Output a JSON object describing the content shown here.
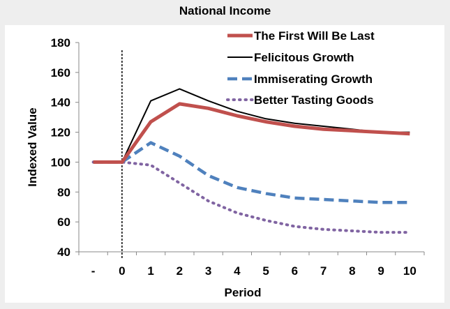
{
  "chart_data": {
    "type": "line",
    "title": "National Income",
    "xlabel": "Period",
    "ylabel": "Indexed Value",
    "categories": [
      "-",
      "0",
      "1",
      "2",
      "3",
      "4",
      "5",
      "6",
      "7",
      "8",
      "9",
      "10"
    ],
    "ylim": [
      40,
      180
    ],
    "yticks": [
      "40",
      "60",
      "80",
      "100",
      "120",
      "140",
      "160",
      "180"
    ],
    "grid": false,
    "legend_position": "top-right",
    "vertical_marker_at": "0",
    "series": [
      {
        "name": "The First Will Be Last",
        "color": "#c0504d",
        "style": "thick",
        "values": [
          100,
          100,
          127,
          139,
          136,
          131,
          127,
          124,
          122,
          121,
          120,
          119
        ]
      },
      {
        "name": "Felicitous Growth",
        "color": "#000000",
        "style": "thin",
        "values": [
          100,
          100,
          141,
          149,
          141,
          134,
          129,
          126,
          124,
          122,
          120,
          120
        ]
      },
      {
        "name": "Immiserating Growth",
        "color": "#4f81bd",
        "style": "dashed",
        "values": [
          100,
          100,
          113,
          104,
          91,
          83,
          79,
          76,
          75,
          74,
          73,
          73
        ]
      },
      {
        "name": "Better Tasting Goods",
        "color": "#8064a2",
        "style": "dotted",
        "values": [
          100,
          100,
          98,
          86,
          74,
          66,
          61,
          57,
          55,
          54,
          53,
          53
        ]
      }
    ]
  }
}
